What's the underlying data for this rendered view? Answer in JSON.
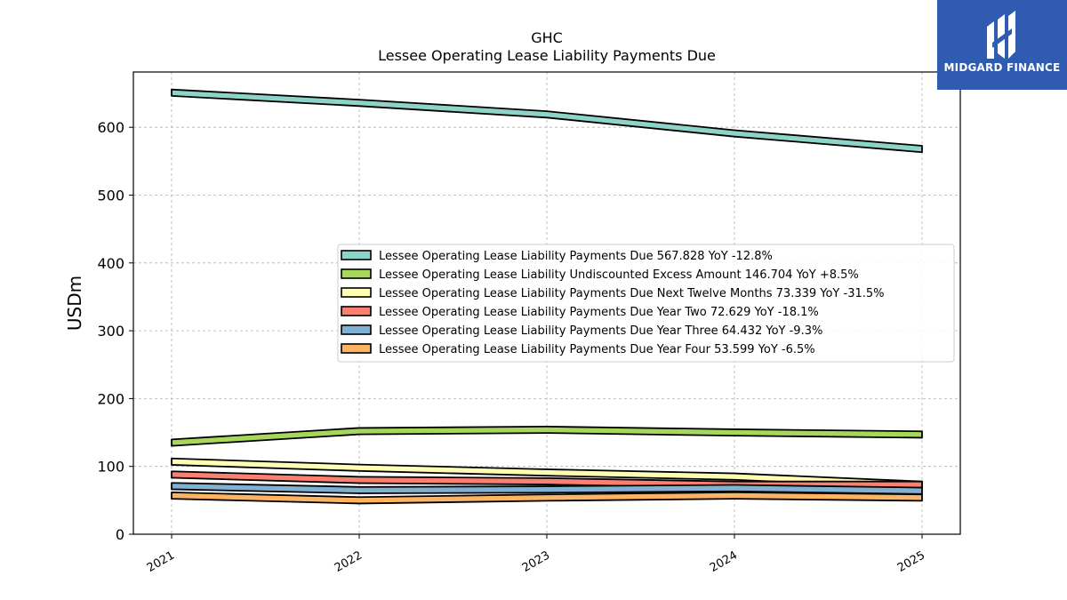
{
  "chart_data": {
    "type": "area",
    "title": "GHC",
    "subtitle": "Lessee Operating Lease Liability Payments Due",
    "xlabel": "",
    "ylabel": "USDm",
    "x": [
      "2021",
      "2022",
      "2023",
      "2024",
      "2025"
    ],
    "ylim": [
      0,
      680
    ],
    "yticks": [
      0,
      100,
      200,
      300,
      400,
      500,
      600
    ],
    "grid": true,
    "legend_position": "center-right",
    "series": [
      {
        "name": "Lessee Operating Lease Liability Payments Due",
        "legend_label": "Lessee Operating Lease Liability Payments Due  567.828 YoY -12.8%",
        "color": "#8dd3c7",
        "values": [
          651,
          636,
          619,
          591,
          568
        ]
      },
      {
        "name": "Lessee Operating Lease Liability Undiscounted Excess Amount",
        "legend_label": "Lessee Operating Lease Liability Undiscounted Excess Amount  146.704 YoY +8.5%",
        "color": "#a6d75b",
        "values": [
          135,
          152,
          154,
          150,
          147
        ]
      },
      {
        "name": "Lessee Operating Lease Liability Payments Due Next Twelve Months",
        "legend_label": "Lessee Operating Lease Liability Payments Due Next Twelve Months  73.339 YoY -31.5%",
        "color": "#ffffb3",
        "values": [
          107,
          98,
          91,
          85,
          73
        ]
      },
      {
        "name": "Lessee Operating Lease Liability Payments Due Year Two",
        "legend_label": "Lessee Operating Lease Liability Payments Due Year Two  72.629 YoY -18.1%",
        "color": "#fb8072",
        "values": [
          88,
          80,
          78,
          73,
          73
        ]
      },
      {
        "name": "Lessee Operating Lease Liability Payments Due Year Three",
        "legend_label": "Lessee Operating Lease Liability Payments Due Year Three  64.432 YoY -9.3%",
        "color": "#80b1d3",
        "values": [
          71,
          65,
          66,
          68,
          64
        ]
      },
      {
        "name": "Lessee Operating Lease Liability Payments Due Year Four",
        "legend_label": "Lessee Operating Lease Liability Payments Due Year Four  53.599 YoY -6.5%",
        "color": "#fdb462",
        "values": [
          57,
          50,
          54,
          57,
          54
        ]
      }
    ]
  },
  "brand": {
    "name": "MIDGARD FINANCE",
    "color": "#2f5bb0"
  }
}
